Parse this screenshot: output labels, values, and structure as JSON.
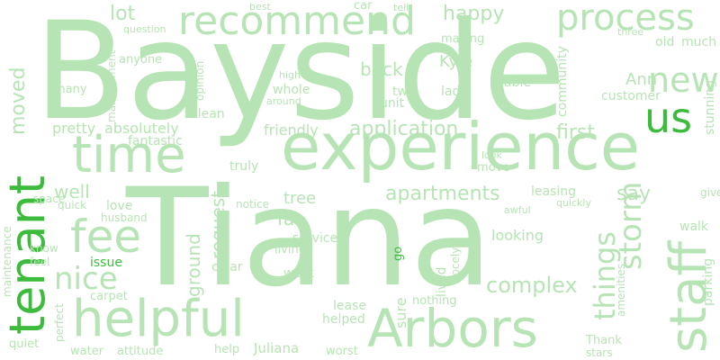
{
  "colors": {
    "light": "#b7e4b4",
    "accent": "#3dbb3d",
    "background": "#ffffff"
  },
  "words": [
    {
      "text": "Bayside",
      "tone": "light"
    },
    {
      "text": "Tiana",
      "tone": "light"
    },
    {
      "text": "experience",
      "tone": "light"
    },
    {
      "text": "helpful",
      "tone": "light"
    },
    {
      "text": "Arbors",
      "tone": "light"
    },
    {
      "text": "tenant",
      "tone": "accent"
    },
    {
      "text": "time",
      "tone": "light"
    },
    {
      "text": "staff",
      "tone": "light"
    },
    {
      "text": "us",
      "tone": "accent"
    },
    {
      "text": "recommend",
      "tone": "light"
    },
    {
      "text": "process",
      "tone": "light"
    },
    {
      "text": "fee",
      "tone": "light"
    },
    {
      "text": "new",
      "tone": "light"
    },
    {
      "text": "nice",
      "tone": "light"
    },
    {
      "text": "moved",
      "tone": "light"
    },
    {
      "text": "storm",
      "tone": "light"
    },
    {
      "text": "things",
      "tone": "light"
    },
    {
      "text": "complex",
      "tone": "light"
    },
    {
      "text": "application",
      "tone": "light"
    },
    {
      "text": "apartments",
      "tone": "light"
    },
    {
      "text": "happy",
      "tone": "light"
    },
    {
      "text": "lot",
      "tone": "light"
    },
    {
      "text": "first",
      "tone": "light"
    },
    {
      "text": "back",
      "tone": "light"
    },
    {
      "text": "Kyle",
      "tone": "light"
    },
    {
      "text": "Ann",
      "tone": "light"
    },
    {
      "text": "say",
      "tone": "light"
    },
    {
      "text": "request",
      "tone": "light"
    },
    {
      "text": "ground",
      "tone": "light"
    },
    {
      "text": "well",
      "tone": "light"
    },
    {
      "text": "far",
      "tone": "light"
    },
    {
      "text": "tree",
      "tone": "light"
    },
    {
      "text": "pretty",
      "tone": "light"
    },
    {
      "text": "absolutely",
      "tone": "light"
    },
    {
      "text": "friendly",
      "tone": "light"
    },
    {
      "text": "whole",
      "tone": "light"
    },
    {
      "text": "customer",
      "tone": "light"
    },
    {
      "text": "service",
      "tone": "light"
    },
    {
      "text": "sure",
      "tone": "light"
    },
    {
      "text": "looking",
      "tone": "light"
    },
    {
      "text": "fantastic",
      "tone": "light"
    },
    {
      "text": "clean",
      "tone": "light"
    },
    {
      "text": "old",
      "tone": "light"
    },
    {
      "text": "much",
      "tone": "light"
    },
    {
      "text": "lady",
      "tone": "light"
    },
    {
      "text": "two",
      "tone": "light"
    },
    {
      "text": "unit",
      "tone": "light"
    },
    {
      "text": "community",
      "tone": "light"
    },
    {
      "text": "able",
      "tone": "light"
    },
    {
      "text": "making",
      "tone": "light"
    },
    {
      "text": "love",
      "tone": "light"
    },
    {
      "text": "husband",
      "tone": "light"
    },
    {
      "text": "quick",
      "tone": "light"
    },
    {
      "text": "issue",
      "tone": "accent"
    },
    {
      "text": "clear",
      "tone": "light"
    },
    {
      "text": "work",
      "tone": "light"
    },
    {
      "text": "lease",
      "tone": "light"
    },
    {
      "text": "helped",
      "tone": "light"
    },
    {
      "text": "lived",
      "tone": "light"
    },
    {
      "text": "Jocelyn",
      "tone": "light"
    },
    {
      "text": "living",
      "tone": "light"
    },
    {
      "text": "notice",
      "tone": "light"
    },
    {
      "text": "truly",
      "tone": "light"
    },
    {
      "text": "leasing",
      "tone": "light"
    },
    {
      "text": "move",
      "tone": "light"
    },
    {
      "text": "amenities",
      "tone": "light"
    },
    {
      "text": "parking",
      "tone": "light"
    },
    {
      "text": "walk",
      "tone": "light"
    },
    {
      "text": "give",
      "tone": "light"
    },
    {
      "text": "stunning",
      "tone": "light"
    },
    {
      "text": "Thank",
      "tone": "light"
    },
    {
      "text": "stars",
      "tone": "light"
    },
    {
      "text": "water",
      "tone": "light"
    },
    {
      "text": "attitude",
      "tone": "light"
    },
    {
      "text": "help",
      "tone": "light"
    },
    {
      "text": "Juliana",
      "tone": "light"
    },
    {
      "text": "worst",
      "tone": "light"
    },
    {
      "text": "quiet",
      "tone": "light"
    },
    {
      "text": "perfect",
      "tone": "light"
    },
    {
      "text": "carpet",
      "tone": "light"
    },
    {
      "text": "maintenance",
      "tone": "light"
    },
    {
      "text": "feel",
      "tone": "light"
    },
    {
      "text": "know",
      "tone": "light"
    },
    {
      "text": "space",
      "tone": "light"
    },
    {
      "text": "many",
      "tone": "light"
    },
    {
      "text": "anyone",
      "tone": "light"
    },
    {
      "text": "management",
      "tone": "light"
    },
    {
      "text": "opinion",
      "tone": "light"
    },
    {
      "text": "question",
      "tone": "light"
    },
    {
      "text": "best",
      "tone": "light"
    },
    {
      "text": "car",
      "tone": "light"
    },
    {
      "text": "high",
      "tone": "light"
    },
    {
      "text": "around",
      "tone": "light"
    },
    {
      "text": "three",
      "tone": "light"
    },
    {
      "text": "look",
      "tone": "light"
    },
    {
      "text": "awful",
      "tone": "light"
    },
    {
      "text": "quickly",
      "tone": "light"
    },
    {
      "text": "tell",
      "tone": "light"
    },
    {
      "text": "go",
      "tone": "accent"
    },
    {
      "text": "nothing",
      "tone": "light"
    }
  ]
}
